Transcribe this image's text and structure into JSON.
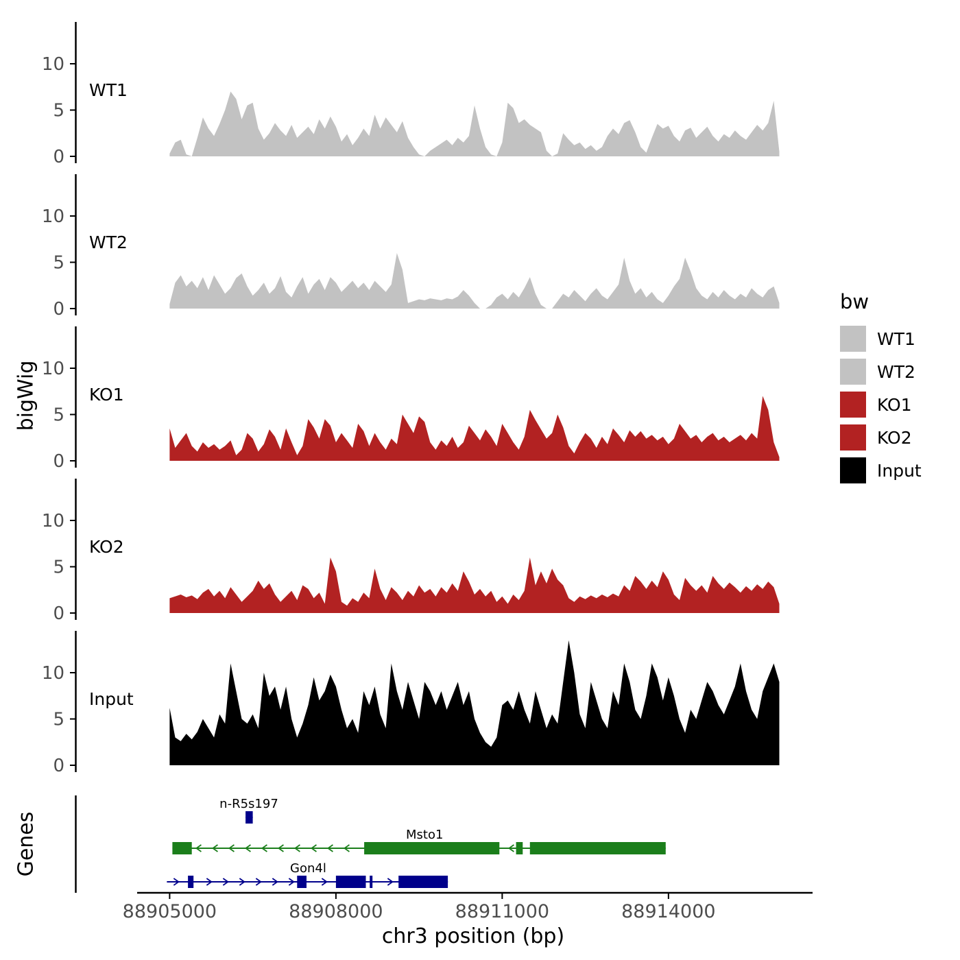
{
  "figure": {
    "background": "#ffffff",
    "y_axis_label": "bigWig",
    "genes_axis_label": "Genes",
    "x_axis_label": "chr3 position (bp)",
    "x_ticks": [
      88905000,
      88908000,
      88911000,
      88914000
    ],
    "x_tick_labels": [
      "88905000",
      "88908000",
      "88911000",
      "88914000"
    ],
    "x_domain": [
      88903300,
      88916600
    ],
    "axis_color": "#000000",
    "tick_label_color": "#4d4d4d"
  },
  "legend": {
    "title": "bw",
    "entries": [
      {
        "label": "WT1",
        "color": "#c2c2c2"
      },
      {
        "label": "WT2",
        "color": "#c2c2c2"
      },
      {
        "label": "KO1",
        "color": "#b22222"
      },
      {
        "label": "KO2",
        "color": "#b22222"
      },
      {
        "label": "Input",
        "color": "#000000"
      }
    ]
  },
  "chart_data": {
    "type": "area",
    "title": "",
    "xlabel": "chr3 position (bp)",
    "ylabel": "bigWig",
    "x_start": 88905000,
    "x_step": 100,
    "x_end": 88916000,
    "y_ticks": [
      0,
      5,
      10
    ],
    "ylim": [
      0,
      14
    ],
    "grid": false,
    "legend_position": "right",
    "tracks": [
      {
        "name": "WT1",
        "color": "#c2c2c2",
        "values": [
          0.3,
          1.5,
          1.8,
          0.2,
          0,
          2,
          4.2,
          3,
          2.2,
          3.5,
          5,
          7,
          6.2,
          4,
          5.5,
          5.8,
          3,
          1.8,
          2.5,
          3.6,
          2.8,
          2.2,
          3.4,
          2,
          2.6,
          3.2,
          2.4,
          4,
          3,
          4.3,
          3.2,
          1.6,
          2.4,
          1.2,
          2,
          3,
          2.2,
          4.5,
          3,
          4.2,
          3.4,
          2.6,
          3.8,
          2,
          1,
          0.2,
          0,
          0.6,
          1,
          1.4,
          1.8,
          1.2,
          2,
          1.5,
          2.2,
          5.5,
          3,
          1,
          0.2,
          0,
          1.5,
          5.8,
          5.2,
          3.6,
          4,
          3.4,
          3,
          2.6,
          0.6,
          0,
          0.3,
          2.5,
          1.8,
          1.2,
          1.5,
          0.8,
          1.2,
          0.6,
          1,
          2.2,
          3,
          2.4,
          3.6,
          3.9,
          2.6,
          1,
          0.4,
          2,
          3.5,
          3,
          3.3,
          2.2,
          1.6,
          2.8,
          3.1,
          2,
          2.6,
          3.2,
          2.2,
          1.6,
          2.4,
          2,
          2.8,
          2.2,
          1.8,
          2.6,
          3.4,
          2.8,
          3.6,
          6,
          0.5
        ]
      },
      {
        "name": "WT2",
        "color": "#c2c2c2",
        "values": [
          0.5,
          2.8,
          3.6,
          2.4,
          3,
          2.2,
          3.4,
          2,
          3.6,
          2.6,
          1.6,
          2.2,
          3.3,
          3.8,
          2.4,
          1.4,
          2,
          2.8,
          1.6,
          2.2,
          3.5,
          1.8,
          1.2,
          2.4,
          3.4,
          1.6,
          2.6,
          3.2,
          2,
          3.4,
          2.8,
          1.8,
          2.4,
          3,
          2.2,
          2.8,
          2,
          3,
          2.4,
          1.8,
          2.6,
          6,
          4.2,
          0.6,
          0.8,
          1,
          0.9,
          1.1,
          1,
          0.9,
          1.1,
          1,
          1.3,
          2,
          1.4,
          0.6,
          0,
          0,
          0.4,
          1.2,
          1.6,
          1,
          1.8,
          1.2,
          2.2,
          3.4,
          1.6,
          0.4,
          0,
          0,
          0.8,
          1.6,
          1.2,
          2,
          1.4,
          0.8,
          1.6,
          2.2,
          1.4,
          1,
          1.8,
          2.6,
          5.5,
          3,
          1.6,
          2.2,
          1.2,
          1.8,
          1,
          0.6,
          1.4,
          2.4,
          3.2,
          5.5,
          4,
          2.2,
          1.4,
          1,
          1.8,
          1.2,
          2,
          1.4,
          1,
          1.6,
          1.2,
          2.2,
          1.6,
          1.2,
          2,
          2.4,
          0.6
        ]
      },
      {
        "name": "KO1",
        "color": "#b22222",
        "values": [
          3.5,
          1.4,
          2.2,
          3,
          1.6,
          1,
          2,
          1.4,
          1.8,
          1.2,
          1.6,
          2.2,
          0.6,
          1.2,
          3,
          2.4,
          1,
          1.8,
          3.4,
          2.6,
          1.2,
          3.5,
          2,
          0.6,
          1.6,
          4.5,
          3.6,
          2.4,
          4.5,
          3.8,
          2,
          3,
          2.2,
          1.4,
          4,
          3.2,
          1.6,
          3,
          2,
          1.2,
          2.4,
          1.8,
          5,
          4,
          3,
          4.8,
          4.2,
          2,
          1.2,
          2.2,
          1.6,
          2.6,
          1.4,
          2,
          3.8,
          3,
          2.2,
          3.4,
          2.6,
          1.6,
          4,
          3,
          2,
          1.2,
          2.6,
          5.5,
          4.4,
          3.4,
          2.4,
          3,
          5,
          3.6,
          1.6,
          0.8,
          2,
          3,
          2.4,
          1.4,
          2.6,
          1.8,
          3.5,
          2.8,
          2,
          3.3,
          2.6,
          3.2,
          2.4,
          2.8,
          2.2,
          2.6,
          1.8,
          2.4,
          4,
          3.2,
          2.4,
          2.8,
          2,
          2.6,
          3,
          2.2,
          2.6,
          2,
          2.4,
          2.8,
          2.2,
          3,
          2.4,
          7,
          5.5,
          2,
          0.4
        ]
      },
      {
        "name": "KO2",
        "color": "#b22222",
        "values": [
          1.6,
          1.8,
          2,
          1.7,
          1.9,
          1.5,
          2.2,
          2.6,
          1.8,
          2.4,
          1.6,
          2.8,
          2,
          1.2,
          1.8,
          2.4,
          3.5,
          2.6,
          3.2,
          2,
          1.2,
          1.8,
          2.4,
          1.4,
          3,
          2.6,
          1.6,
          2.2,
          1,
          6,
          4.5,
          1.2,
          0.8,
          1.6,
          1.2,
          2.2,
          1.6,
          4.8,
          2.6,
          1.4,
          2.8,
          2.2,
          1.4,
          2.4,
          1.8,
          3,
          2.2,
          2.6,
          1.8,
          2.8,
          2.2,
          3.2,
          2.4,
          4.5,
          3.4,
          2,
          2.6,
          1.8,
          2.4,
          1.2,
          1.8,
          1,
          2,
          1.4,
          2.4,
          6,
          3,
          4.5,
          3.2,
          4.8,
          3.6,
          3,
          1.6,
          1.2,
          1.8,
          1.5,
          1.9,
          1.6,
          2,
          1.7,
          2.1,
          1.8,
          3,
          2.4,
          4,
          3.4,
          2.6,
          3.5,
          2.8,
          4.5,
          3.6,
          2,
          1.4,
          3.8,
          3,
          2.4,
          3,
          2.2,
          4,
          3.2,
          2.6,
          3.3,
          2.8,
          2.2,
          2.9,
          2.4,
          3.1,
          2.6,
          3.4,
          2.8,
          1
        ]
      },
      {
        "name": "Input",
        "color": "#000000",
        "values": [
          6.2,
          3,
          2.6,
          3.4,
          2.8,
          3.6,
          5,
          4,
          3,
          5.5,
          4.5,
          11,
          8,
          5,
          4.5,
          5.5,
          4,
          10,
          7.5,
          8.5,
          6,
          8.5,
          5,
          3,
          4.5,
          6.5,
          9.5,
          7,
          8,
          9.8,
          8.5,
          6,
          4,
          5,
          3.5,
          8,
          6.5,
          8.5,
          5.5,
          4,
          11,
          8,
          6,
          9,
          7,
          5,
          9,
          8,
          6.5,
          8,
          6,
          7.5,
          9,
          6.5,
          8,
          5,
          3.5,
          2.5,
          2,
          3,
          6.5,
          7,
          6,
          8,
          6,
          4.5,
          8,
          6,
          4,
          5.5,
          4.5,
          9,
          13.5,
          10,
          5.5,
          4,
          9,
          7,
          5,
          4,
          8,
          6.5,
          11,
          9,
          6,
          5,
          7.5,
          11,
          9.5,
          7,
          9.5,
          7.5,
          5,
          3.5,
          6,
          5,
          7,
          9,
          8,
          6.5,
          5.5,
          7,
          8.5,
          11,
          8,
          6,
          5,
          8,
          9.5,
          11,
          9
        ]
      }
    ],
    "genes": [
      {
        "name": "n-R5s197",
        "color": "#00008b",
        "strand": "+",
        "row": 0,
        "start": 88906370,
        "end": 88906500,
        "exons": [
          [
            88906370,
            88906500
          ]
        ],
        "label_x": 88906430
      },
      {
        "name": "Msto1",
        "color": "#1b7e1b",
        "strand": "-",
        "row": 1,
        "start": 88905050,
        "end": 88913950,
        "exons": [
          [
            88905050,
            88905400
          ],
          [
            88908510,
            88910950
          ],
          [
            88911250,
            88911370
          ],
          [
            88911500,
            88913950
          ]
        ],
        "label_x": 88909600
      },
      {
        "name": "Gon4l",
        "color": "#00008b",
        "strand": "+",
        "row": 2,
        "start": 88904950,
        "end": 88910020,
        "exons": [
          [
            88905330,
            88905430
          ],
          [
            88907300,
            88907470
          ],
          [
            88908000,
            88908540
          ],
          [
            88908610,
            88908660
          ],
          [
            88909130,
            88910020
          ]
        ],
        "label_x": 88907500
      }
    ]
  }
}
